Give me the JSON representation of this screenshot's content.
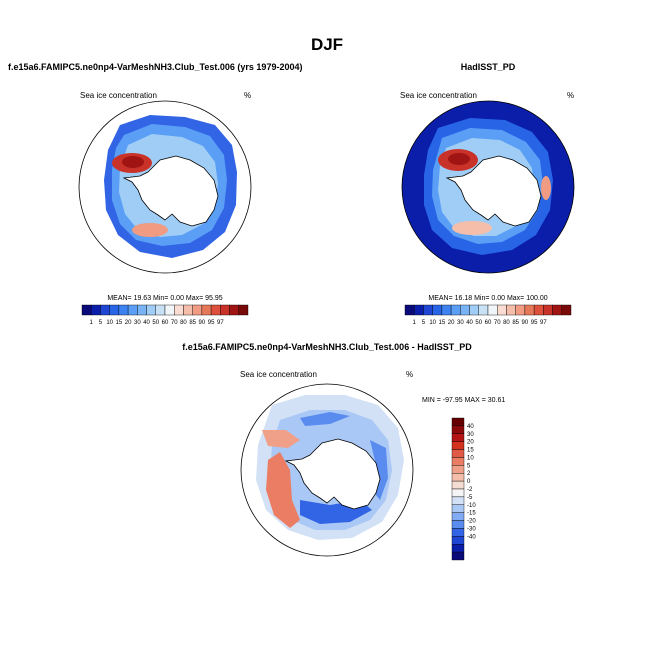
{
  "title": "DJF",
  "colors": {
    "seq": [
      "#0a0a78",
      "#0a1eaa",
      "#1e46d2",
      "#2864e6",
      "#3c82f0",
      "#5a9ff5",
      "#78b4f5",
      "#a0cdf5",
      "#c8e1f5",
      "#f0f5fa",
      "#fadcd2",
      "#f5beaa",
      "#f09b82",
      "#e6785a",
      "#dc503c",
      "#c83228",
      "#a01414",
      "#780a0a"
    ],
    "diff": [
      "#0a0a78",
      "#0a1eaa",
      "#1e46d2",
      "#3264e6",
      "#5a8cf0",
      "#82aaf5",
      "#aac8f5",
      "#d2e1f5",
      "#f5f5f5",
      "#f5dcd2",
      "#f5beaa",
      "#f0a088",
      "#eb7d64",
      "#e15a46",
      "#d2321e",
      "#b41414",
      "#8c0a0a",
      "#640000"
    ]
  },
  "chart_data": [
    {
      "type": "heatmap",
      "projection": "south-polar-stereographic",
      "title": "f.e15a6.FAMIPC5.ne0np4-VarMeshNH3.Club_Test.006 (yrs 1979-2004)",
      "left_label": "Sea ice concentration",
      "right_label": "%",
      "stats": "MEAN=  19.63  Min=   0.00  Max=  95.95",
      "colorbar": {
        "orientation": "horizontal",
        "labels": [
          "1",
          "5",
          "10",
          "15",
          "20",
          "30",
          "40",
          "50",
          "60",
          "70",
          "80",
          "85",
          "90",
          "95",
          "97"
        ]
      }
    },
    {
      "type": "heatmap",
      "projection": "south-polar-stereographic",
      "title": "HadISST_PD",
      "left_label": "Sea ice concentration",
      "right_label": "%",
      "stats": "MEAN=  16.18  Min=   0.00  Max= 100.00",
      "colorbar": {
        "orientation": "horizontal",
        "labels": [
          "1",
          "5",
          "10",
          "15",
          "20",
          "30",
          "40",
          "50",
          "60",
          "70",
          "80",
          "85",
          "90",
          "95",
          "97"
        ]
      }
    },
    {
      "type": "heatmap",
      "projection": "south-polar-stereographic",
      "title": "f.e15a6.FAMIPC5.ne0np4-VarMeshNH3.Club_Test.006 - HadISST_PD",
      "left_label": "Sea ice concentration",
      "right_label": "%",
      "stats": "MIN = -97.95 MAX =  30.61",
      "colorbar": {
        "orientation": "vertical",
        "labels": [
          "40",
          "30",
          "20",
          "15",
          "10",
          "5",
          "2",
          "0",
          "-2",
          "-5",
          "-10",
          "-15",
          "-20",
          "-30",
          "-40"
        ]
      }
    }
  ]
}
